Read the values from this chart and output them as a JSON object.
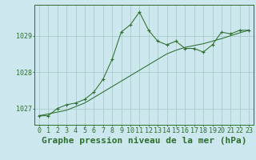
{
  "title": "Graphe pression niveau de la mer (hPa)",
  "bg_color": "#cce8ee",
  "grid_color": "#aacccc",
  "line_color": "#2d6e2d",
  "x_labels": [
    "0",
    "1",
    "2",
    "3",
    "4",
    "5",
    "6",
    "7",
    "8",
    "9",
    "10",
    "11",
    "12",
    "13",
    "14",
    "15",
    "16",
    "17",
    "18",
    "19",
    "20",
    "21",
    "22",
    "23"
  ],
  "x_values": [
    0,
    1,
    2,
    3,
    4,
    5,
    6,
    7,
    8,
    9,
    10,
    11,
    12,
    13,
    14,
    15,
    16,
    17,
    18,
    19,
    20,
    21,
    22,
    23
  ],
  "pressure_line": [
    1026.8,
    1026.8,
    1027.0,
    1027.1,
    1027.15,
    1027.25,
    1027.45,
    1027.8,
    1028.35,
    1029.1,
    1029.3,
    1029.65,
    1029.15,
    1028.85,
    1028.75,
    1028.85,
    1028.65,
    1028.65,
    1028.55,
    1028.75,
    1029.1,
    1029.05,
    1029.15,
    1029.15
  ],
  "trend_line": [
    1026.8,
    1026.85,
    1026.9,
    1026.95,
    1027.05,
    1027.15,
    1027.3,
    1027.45,
    1027.6,
    1027.75,
    1027.9,
    1028.05,
    1028.2,
    1028.35,
    1028.5,
    1028.6,
    1028.68,
    1028.73,
    1028.78,
    1028.85,
    1028.92,
    1029.0,
    1029.08,
    1029.15
  ],
  "ylim": [
    1026.55,
    1029.85
  ],
  "yticks": [
    1027,
    1028,
    1029
  ],
  "title_fontsize": 8,
  "tick_fontsize": 6
}
